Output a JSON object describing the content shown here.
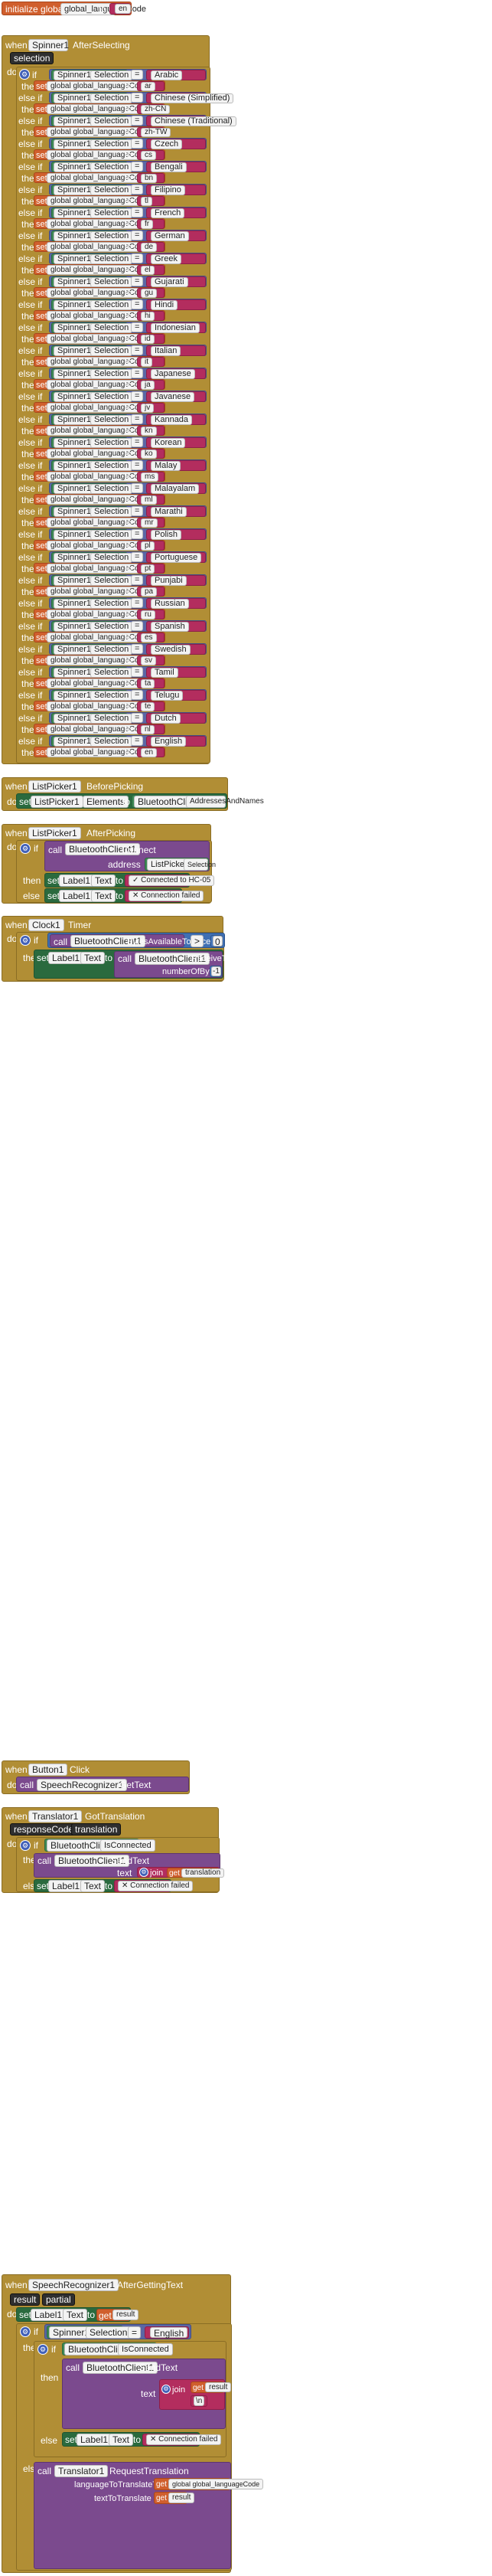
{
  "init": {
    "label": "initialize global",
    "name": "global_languageCode",
    "to": "to",
    "value": "en"
  },
  "spinner_event": {
    "when": "when",
    "component": "Spinner1",
    "event": "AfterSelecting",
    "param": "selection",
    "do": "do",
    "if": "if",
    "elseif": "else if",
    "then": "then",
    "set": "set",
    "get_label": "get",
    "var": "global global_languageCode",
    "comp": "Spinner1",
    "prop": "Selection",
    "op": "=",
    "rows": [
      {
        "lang": "Arabic",
        "code": "ar"
      },
      {
        "lang": "Chinese (Simplified)",
        "code": "zh-CN"
      },
      {
        "lang": "Chinese (Traditional)",
        "code": "zh-TW"
      },
      {
        "lang": "Czech",
        "code": "cs"
      },
      {
        "lang": "Bengali",
        "code": "bn"
      },
      {
        "lang": "Filipino",
        "code": "tl"
      },
      {
        "lang": "French",
        "code": "fr"
      },
      {
        "lang": "German",
        "code": "de"
      },
      {
        "lang": "Greek",
        "code": "el"
      },
      {
        "lang": "Gujarati",
        "code": "gu"
      },
      {
        "lang": "Hindi",
        "code": "hi"
      },
      {
        "lang": "Indonesian",
        "code": "id"
      },
      {
        "lang": "Italian",
        "code": "it"
      },
      {
        "lang": "Japanese",
        "code": "ja"
      },
      {
        "lang": "Javanese",
        "code": "jv"
      },
      {
        "lang": "Kannada",
        "code": "kn"
      },
      {
        "lang": "Korean",
        "code": "ko"
      },
      {
        "lang": "Malay",
        "code": "ms"
      },
      {
        "lang": "Malayalam",
        "code": "ml"
      },
      {
        "lang": "Marathi",
        "code": "mr"
      },
      {
        "lang": "Polish",
        "code": "pl"
      },
      {
        "lang": "Portuguese",
        "code": "pt"
      },
      {
        "lang": "Punjabi",
        "code": "pa"
      },
      {
        "lang": "Russian",
        "code": "ru"
      },
      {
        "lang": "Spanish",
        "code": "es"
      },
      {
        "lang": "Swedish",
        "code": "sv"
      },
      {
        "lang": "Tamil",
        "code": "ta"
      },
      {
        "lang": "Telugu",
        "code": "te"
      },
      {
        "lang": "Dutch",
        "code": "nl"
      },
      {
        "lang": "English",
        "code": "en"
      }
    ]
  },
  "listpicker_before": {
    "when": "when",
    "component": "ListPicker1",
    "event": "BeforePicking",
    "do": "do",
    "set": "set",
    "target": "ListPicker1",
    "prop": "Elements",
    "to": "to",
    "source": "BluetoothClient1",
    "source_prop": "AddressesAndNames"
  },
  "listpicker_after": {
    "when": "when",
    "component": "ListPicker1",
    "event": "AfterPicking",
    "do": "do",
    "if": "if",
    "call": "call",
    "bt": "BluetoothClient1",
    "method": "Connect",
    "address": "address",
    "lp": "ListPicker1",
    "lp_prop": "Selection",
    "then": "then",
    "else": "else",
    "set": "set",
    "label": "Label1",
    "prop": "Text",
    "to": "to",
    "connected": "Connected to HC-05",
    "failed": "Connection failed"
  },
  "clock": {
    "when": "when",
    "component": "Clock1",
    "event": "Timer",
    "do": "do",
    "if": "if",
    "call": "call",
    "bt": "BluetoothClient1",
    "method": "BytesAvailableToReceive",
    "gt": ">",
    "zero": "0",
    "then": "then",
    "set": "set",
    "label": "Label1",
    "prop": "Text",
    "to": "to",
    "method2": "ReceiveText",
    "nbytes": "numberOfBytes",
    "neg1": "-1"
  },
  "button": {
    "when": "when",
    "component": "Button1",
    "event": "Click",
    "do": "do",
    "call": "call",
    "sr": "SpeechRecognizer1",
    "method": "GetText"
  },
  "translator": {
    "when": "when",
    "component": "Translator1",
    "event": "GotTranslation",
    "p1": "responseCode",
    "p2": "translation",
    "do": "do",
    "if": "if",
    "bt": "BluetoothClient1",
    "isc": "IsConnected",
    "then": "then",
    "call": "call",
    "send": "SendText",
    "text": "text",
    "join": "join",
    "get": "get",
    "get_var": "translation",
    "nl": "\\n",
    "else": "else",
    "set": "set",
    "label": "Label1",
    "prop": "Text",
    "to": "to",
    "failed": "Connection failed"
  },
  "speech": {
    "when": "when",
    "component": "SpeechRecognizer1",
    "event": "AfterGettingText",
    "p1": "result",
    "p2": "partial",
    "do": "do",
    "set": "set",
    "label": "Label1",
    "prop": "Text",
    "to": "to",
    "get": "get",
    "result": "result",
    "if": "if",
    "sr": "Spinner1",
    "sel": "Selection",
    "eq": "=",
    "english": "English",
    "then": "then",
    "bt": "BluetoothClient1",
    "isc": "IsConnected",
    "call": "call",
    "send": "SendText",
    "text": "text",
    "join": "join",
    "nl": "\\n",
    "else": "else",
    "failed": "Connection failed",
    "tr": "Translator1",
    "req": "RequestTranslation",
    "ltt": "languageToTranslateTo",
    "ttt": "textToTranslate",
    "gvar": "global global_languageCode"
  }
}
